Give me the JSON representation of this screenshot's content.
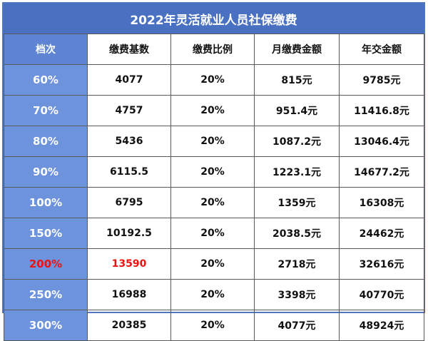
{
  "title": "2022年灵活就业人员社保缴费",
  "headers": [
    "档次",
    "缴费基数",
    "缴费比例",
    "月缴费金额",
    "年交金额"
  ],
  "rows": [
    {
      "tier": "60%",
      "base": "4077",
      "rate": "20%",
      "monthly": "815元",
      "yearly": "9785元"
    },
    {
      "tier": "70%",
      "base": "4757",
      "rate": "20%",
      "monthly": "951.4元",
      "yearly": "11416.8元"
    },
    {
      "tier": "80%",
      "base": "5436",
      "rate": "20%",
      "monthly": "1087.2元",
      "yearly": "13046.4元"
    },
    {
      "tier": "90%",
      "base": "6115.5",
      "rate": "20%",
      "monthly": "1223.1元",
      "yearly": "14677.2元"
    },
    {
      "tier": "100%",
      "base": "6795",
      "rate": "20%",
      "monthly": "1359元",
      "yearly": "16308元"
    },
    {
      "tier": "150%",
      "base": "10192.5",
      "rate": "20%",
      "monthly": "2038.5元",
      "yearly": "24462元"
    },
    {
      "tier": "200%",
      "base": "13590",
      "rate": "20%",
      "monthly": "2718元",
      "yearly": "32616元"
    },
    {
      "tier": "250%",
      "base": "16988",
      "rate": "20%",
      "monthly": "3398元",
      "yearly": "40770元"
    },
    {
      "tier": "300%",
      "base": "20385",
      "rate": "20%",
      "monthly": "4077元",
      "yearly": "48924元"
    }
  ],
  "colors": {
    "header_blue": "#4a70c2",
    "tier_blue": "#6e93dd",
    "highlight_red": "#ee1111"
  },
  "highlighted_tier": "200%"
}
